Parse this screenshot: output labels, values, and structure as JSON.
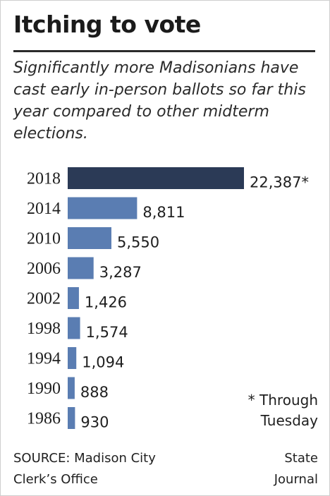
{
  "chart_data": {
    "type": "bar",
    "orientation": "horizontal",
    "title": "Itching to vote",
    "subtitle": "Significantly more Madisonians have cast early in-person ballots so far this year compared to other midterm elections.",
    "categories": [
      "2018",
      "2014",
      "2010",
      "2006",
      "2002",
      "1998",
      "1994",
      "1990",
      "1986"
    ],
    "values": [
      22387,
      8811,
      5550,
      3287,
      1426,
      1574,
      1094,
      888,
      930
    ],
    "value_labels": [
      "22,387*",
      "8,811",
      "5,550",
      "3,287",
      "1,426",
      "1,574",
      "1,094",
      "888",
      "930"
    ],
    "xlim": [
      0,
      22387
    ],
    "grid": false,
    "highlight_index": 0,
    "colors": {
      "highlight": "#2b3a56",
      "bar": "#5a7db2"
    },
    "note": "* Through Tuesday",
    "source": "SOURCE: Madison City Clerk’s Office",
    "credit": "State Journal"
  }
}
